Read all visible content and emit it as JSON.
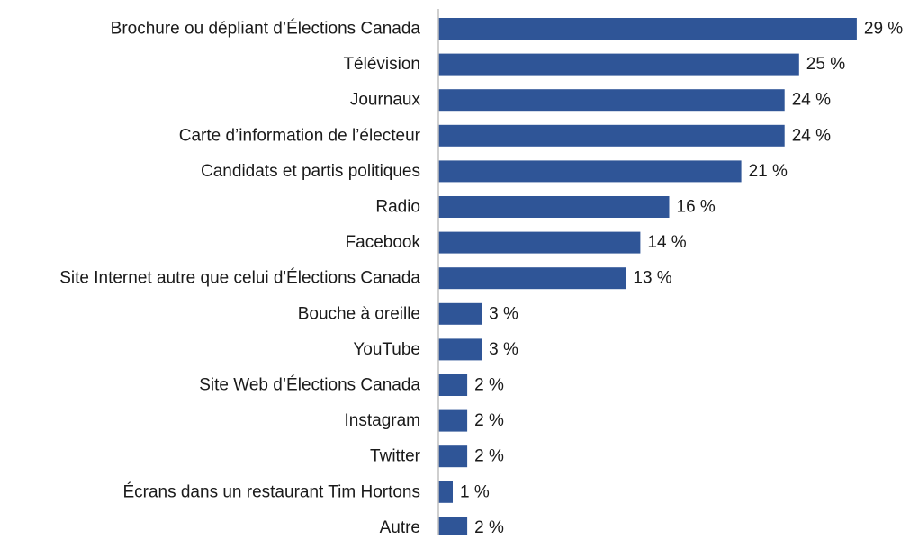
{
  "chart_data": {
    "type": "bar",
    "orientation": "horizontal",
    "title": "",
    "xlabel": "",
    "ylabel": "",
    "value_suffix": " %",
    "bar_color": "#2F5597",
    "axis_color": "#BFBFBF",
    "text_color": "#1a1a1a",
    "grid": false,
    "legend": "none",
    "xlim": [
      0,
      30
    ],
    "categories": [
      "Brochure ou dépliant d’Élections Canada",
      "Télévision",
      "Journaux",
      "Carte d’information de l’électeur",
      "Candidats et partis politiques",
      "Radio",
      "Facebook",
      "Site Internet autre que celui d'Élections Canada",
      "Bouche à oreille",
      "YouTube",
      "Site Web d’Élections Canada",
      "Instagram",
      "Twitter",
      "Écrans dans un restaurant Tim Hortons",
      "Autre"
    ],
    "values": [
      29,
      25,
      24,
      24,
      21,
      16,
      14,
      13,
      3,
      3,
      2,
      2,
      2,
      1,
      2
    ]
  }
}
